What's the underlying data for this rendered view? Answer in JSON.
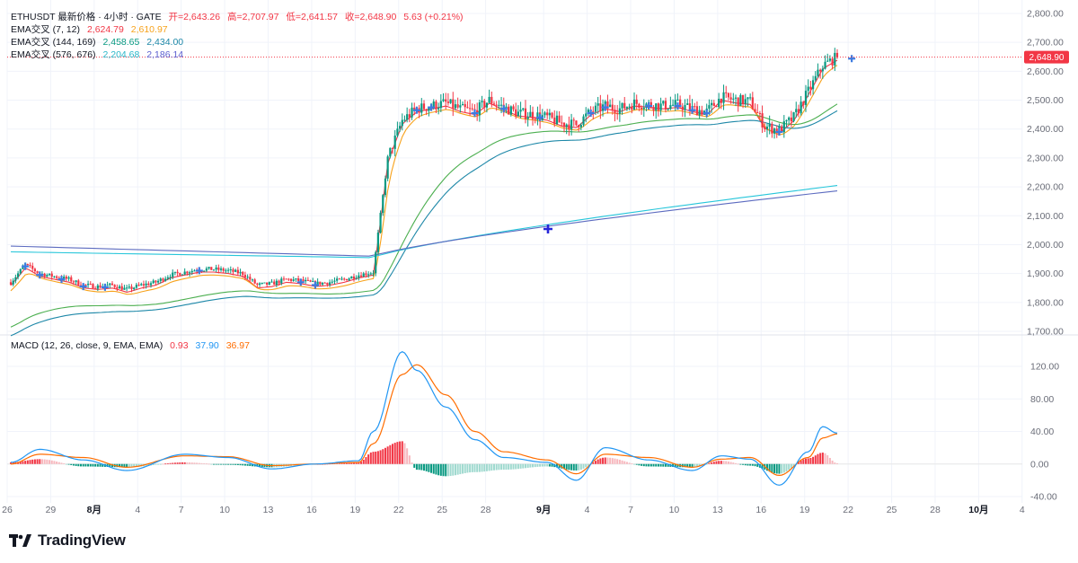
{
  "header": {
    "symbol_line": "ETHUSDT 最新价格 · 4小时 · GATE",
    "open_label": "开=2,643.26",
    "high_label": "高=2,707.97",
    "low_label": "低=2,641.57",
    "close_label": "收=2,648.90",
    "change_label": "5.63 (+0.21%)"
  },
  "legend": {
    "ema1_title": "EMA交叉 (7, 12)",
    "ema1_v1": "2,624.79",
    "ema1_v2": "2,610.97",
    "ema2_title": "EMA交叉 (144, 169)",
    "ema2_v1": "2,458.65",
    "ema2_v2": "2,434.00",
    "ema3_title": "EMA交叉 (576, 676)",
    "ema3_v1": "2,204.68",
    "ema3_v2": "2,186.14",
    "macd_title": "MACD (12, 26, close, 9, EMA, EMA)",
    "macd_hist": "0.93",
    "macd_line": "37.90",
    "macd_signal": "36.97"
  },
  "price_badge": "2,648.90",
  "brand": "TradingView",
  "colors": {
    "up": "#089981",
    "down": "#f23645",
    "ema_fast": "#f23645",
    "ema_slow": "#f7a21b",
    "ema_mid1": "#4caf50",
    "ema_mid2": "#1e88a8",
    "ema_long1": "#26c6da",
    "ema_long2": "#5c6bc0",
    "macd_line": "#2196f3",
    "signal_line": "#ff6d00"
  },
  "chart_data": [
    {
      "type": "candlestick",
      "title": "ETHUSDT 最新价格 · 4小时 · GATE",
      "x_tick_labels": [
        "26",
        "29",
        "8月",
        "4",
        "7",
        "10",
        "13",
        "16",
        "19",
        "22",
        "25",
        "28",
        "9月",
        "4",
        "7",
        "10",
        "13",
        "16",
        "19",
        "22",
        "25",
        "28",
        "10月",
        "4"
      ],
      "y_tick_labels": [
        "2,800.00",
        "2,700.00",
        "2,600.00",
        "2,500.00",
        "2,400.00",
        "2,300.00",
        "2,200.00",
        "2,100.00",
        "2,000.00",
        "1,900.00",
        "1,800.00",
        "1,700.00"
      ],
      "ylim": [
        1700,
        2800
      ],
      "last_price": 2648.9,
      "close_series": [
        {
          "date": "07-26",
          "close": 1870
        },
        {
          "date": "07-27",
          "close": 1930
        },
        {
          "date": "07-28",
          "close": 1900
        },
        {
          "date": "07-29",
          "close": 1890
        },
        {
          "date": "07-30",
          "close": 1880
        },
        {
          "date": "07-31",
          "close": 1860
        },
        {
          "date": "08-01",
          "close": 1855
        },
        {
          "date": "08-02",
          "close": 1860
        },
        {
          "date": "08-03",
          "close": 1845
        },
        {
          "date": "08-04",
          "close": 1860
        },
        {
          "date": "08-05",
          "close": 1870
        },
        {
          "date": "08-06",
          "close": 1895
        },
        {
          "date": "08-07",
          "close": 1905
        },
        {
          "date": "08-08",
          "close": 1915
        },
        {
          "date": "08-09",
          "close": 1915
        },
        {
          "date": "08-10",
          "close": 1910
        },
        {
          "date": "08-11",
          "close": 1900
        },
        {
          "date": "08-12",
          "close": 1860
        },
        {
          "date": "08-13",
          "close": 1865
        },
        {
          "date": "08-14",
          "close": 1880
        },
        {
          "date": "08-15",
          "close": 1875
        },
        {
          "date": "08-16",
          "close": 1865
        },
        {
          "date": "08-17",
          "close": 1870
        },
        {
          "date": "08-18",
          "close": 1880
        },
        {
          "date": "08-19",
          "close": 1895
        },
        {
          "date": "08-20",
          "close": 1905
        },
        {
          "date": "08-21",
          "close": 2300
        },
        {
          "date": "08-22",
          "close": 2430
        },
        {
          "date": "08-23",
          "close": 2470
        },
        {
          "date": "08-24",
          "close": 2480
        },
        {
          "date": "08-25",
          "close": 2490
        },
        {
          "date": "08-26",
          "close": 2470
        },
        {
          "date": "08-27",
          "close": 2460
        },
        {
          "date": "08-28",
          "close": 2500
        },
        {
          "date": "08-29",
          "close": 2475
        },
        {
          "date": "08-30",
          "close": 2455
        },
        {
          "date": "08-31",
          "close": 2450
        },
        {
          "date": "09-01",
          "close": 2440
        },
        {
          "date": "09-02",
          "close": 2420
        },
        {
          "date": "09-03",
          "close": 2415
        },
        {
          "date": "09-04",
          "close": 2460
        },
        {
          "date": "09-05",
          "close": 2480
        },
        {
          "date": "09-06",
          "close": 2470
        },
        {
          "date": "09-07",
          "close": 2490
        },
        {
          "date": "09-08",
          "close": 2485
        },
        {
          "date": "09-09",
          "close": 2480
        },
        {
          "date": "09-10",
          "close": 2485
        },
        {
          "date": "09-11",
          "close": 2470
        },
        {
          "date": "09-12",
          "close": 2460
        },
        {
          "date": "09-13",
          "close": 2510
        },
        {
          "date": "09-14",
          "close": 2500
        },
        {
          "date": "09-15",
          "close": 2495
        },
        {
          "date": "09-16",
          "close": 2410
        },
        {
          "date": "09-17",
          "close": 2395
        },
        {
          "date": "09-18",
          "close": 2440
        },
        {
          "date": "09-19",
          "close": 2530
        },
        {
          "date": "09-20",
          "close": 2620
        },
        {
          "date": "09-21",
          "close": 2648.9
        }
      ]
    },
    {
      "type": "line",
      "title": "MACD (12, 26, close, 9, EMA, EMA)",
      "y_tick_labels": [
        "120.00",
        "80.00",
        "40.00",
        "0.00",
        "-40.00"
      ],
      "ylim": [
        -40,
        120
      ],
      "last_values": {
        "histogram": 0.93,
        "macd": 37.9,
        "signal": 36.97
      },
      "series": [
        {
          "name": "MACD",
          "points": [
            {
              "date": "07-26",
              "value": 2
            },
            {
              "date": "07-28",
              "value": 18
            },
            {
              "date": "07-31",
              "value": 5
            },
            {
              "date": "08-03",
              "value": -8
            },
            {
              "date": "08-07",
              "value": 12
            },
            {
              "date": "08-10",
              "value": 8
            },
            {
              "date": "08-13",
              "value": -6
            },
            {
              "date": "08-16",
              "value": 0
            },
            {
              "date": "08-19",
              "value": 4
            },
            {
              "date": "08-20",
              "value": 40
            },
            {
              "date": "08-22",
              "value": 138
            },
            {
              "date": "08-23",
              "value": 115
            },
            {
              "date": "08-25",
              "value": 70
            },
            {
              "date": "08-27",
              "value": 30
            },
            {
              "date": "08-29",
              "value": 8
            },
            {
              "date": "09-01",
              "value": 2
            },
            {
              "date": "09-03",
              "value": -20
            },
            {
              "date": "09-05",
              "value": 20
            },
            {
              "date": "09-08",
              "value": 5
            },
            {
              "date": "09-11",
              "value": -8
            },
            {
              "date": "09-13",
              "value": 10
            },
            {
              "date": "09-15",
              "value": 6
            },
            {
              "date": "09-17",
              "value": -26
            },
            {
              "date": "09-19",
              "value": 15
            },
            {
              "date": "09-20",
              "value": 46
            },
            {
              "date": "09-21",
              "value": 37.9
            }
          ]
        },
        {
          "name": "Signal",
          "points": [
            {
              "date": "07-26",
              "value": 0
            },
            {
              "date": "07-28",
              "value": 12
            },
            {
              "date": "07-31",
              "value": 8
            },
            {
              "date": "08-03",
              "value": -4
            },
            {
              "date": "08-07",
              "value": 10
            },
            {
              "date": "08-10",
              "value": 9
            },
            {
              "date": "08-13",
              "value": -2
            },
            {
              "date": "08-16",
              "value": 0
            },
            {
              "date": "08-19",
              "value": 2
            },
            {
              "date": "08-20",
              "value": 25
            },
            {
              "date": "08-22",
              "value": 110
            },
            {
              "date": "08-23",
              "value": 122
            },
            {
              "date": "08-25",
              "value": 85
            },
            {
              "date": "08-27",
              "value": 40
            },
            {
              "date": "08-29",
              "value": 15
            },
            {
              "date": "09-01",
              "value": 5
            },
            {
              "date": "09-03",
              "value": -12
            },
            {
              "date": "09-05",
              "value": 12
            },
            {
              "date": "09-08",
              "value": 8
            },
            {
              "date": "09-11",
              "value": -4
            },
            {
              "date": "09-13",
              "value": 6
            },
            {
              "date": "09-15",
              "value": 8
            },
            {
              "date": "09-17",
              "value": -14
            },
            {
              "date": "09-19",
              "value": 8
            },
            {
              "date": "09-20",
              "value": 32
            },
            {
              "date": "09-21",
              "value": 36.97
            }
          ]
        }
      ]
    }
  ]
}
